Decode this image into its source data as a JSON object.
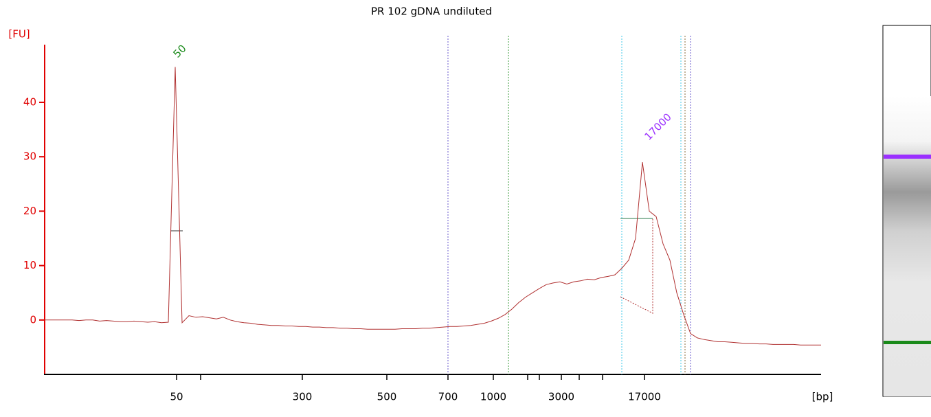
{
  "chart_data": {
    "type": "line",
    "title": "PR 102 gDNA undiluted",
    "y_label": "[FU]",
    "x_label": "[bp]",
    "color": "#b03030",
    "ylim": [
      -10,
      50.6
    ],
    "yticks": [
      0,
      10,
      20,
      30,
      40
    ],
    "xticks": [
      50,
      300,
      500,
      700,
      1000,
      3000,
      17000
    ],
    "annotations": [
      {
        "text": "50",
        "color": "#1a8a1a"
      },
      {
        "text": "17000",
        "color": "#9b30ff"
      }
    ],
    "values": [
      0,
      0,
      0,
      0,
      0,
      -0.1,
      0,
      0,
      -0.2,
      -0.1,
      -0.2,
      -0.3,
      -0.3,
      -0.2,
      -0.3,
      -0.4,
      -0.3,
      -0.5,
      -0.4,
      46.5,
      -0.5,
      0.8,
      0.5,
      0.6,
      0.4,
      0.2,
      0.5,
      0,
      -0.3,
      -0.5,
      -0.6,
      -0.8,
      -0.9,
      -1,
      -1,
      -1.1,
      -1.1,
      -1.2,
      -1.2,
      -1.3,
      -1.3,
      -1.4,
      -1.4,
      -1.5,
      -1.5,
      -1.6,
      -1.6,
      -1.7,
      -1.7,
      -1.7,
      -1.7,
      -1.7,
      -1.6,
      -1.6,
      -1.6,
      -1.5,
      -1.5,
      -1.4,
      -1.3,
      -1.2,
      -1.2,
      -1.1,
      -1.0,
      -0.8,
      -0.6,
      -0.2,
      0.3,
      1,
      2,
      3.2,
      4.2,
      5,
      5.8,
      6.5,
      6.8,
      7,
      6.6,
      7,
      7.2,
      7.5,
      7.4,
      7.8,
      8,
      8.3,
      9.5,
      11,
      15,
      29,
      20,
      19,
      14,
      11,
      5,
      1,
      -2.5,
      -3.3,
      -3.6,
      -3.8,
      -4,
      -4,
      -4.1,
      -4.2,
      -4.3,
      -4.3,
      -4.4,
      -4.4,
      -4.5,
      -4.5,
      -4.5,
      -4.5,
      -4.6,
      -4.6,
      -4.6,
      -4.6
    ]
  }
}
